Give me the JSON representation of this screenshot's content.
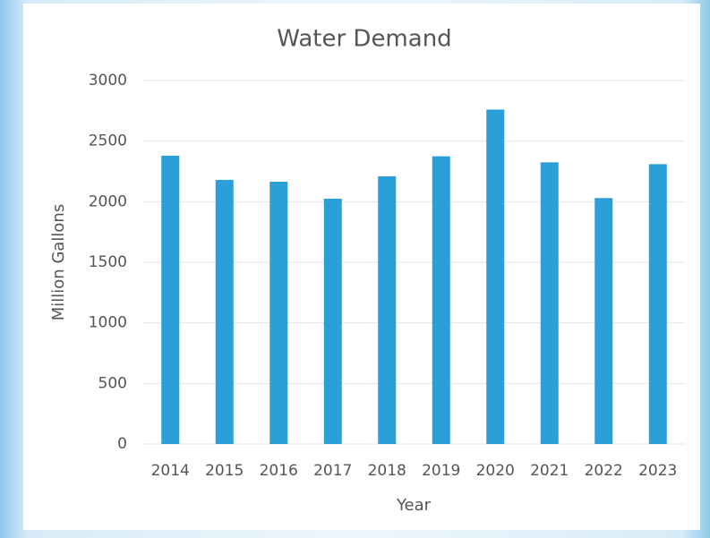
{
  "chart_data": {
    "type": "bar",
    "title": "Water Demand",
    "x_label": "Year",
    "y_label": "Million Gallons",
    "categories": [
      "2014",
      "2015",
      "2016",
      "2017",
      "2018",
      "2019",
      "2020",
      "2021",
      "2022",
      "2023"
    ],
    "values": [
      2380,
      2180,
      2165,
      2025,
      2210,
      2375,
      2760,
      2325,
      2030,
      2310
    ],
    "color": "#2a9fd8",
    "ylim": [
      0,
      3000
    ],
    "yticks": [
      0,
      500,
      1000,
      1500,
      2000,
      2500,
      3000
    ],
    "grid": true
  }
}
